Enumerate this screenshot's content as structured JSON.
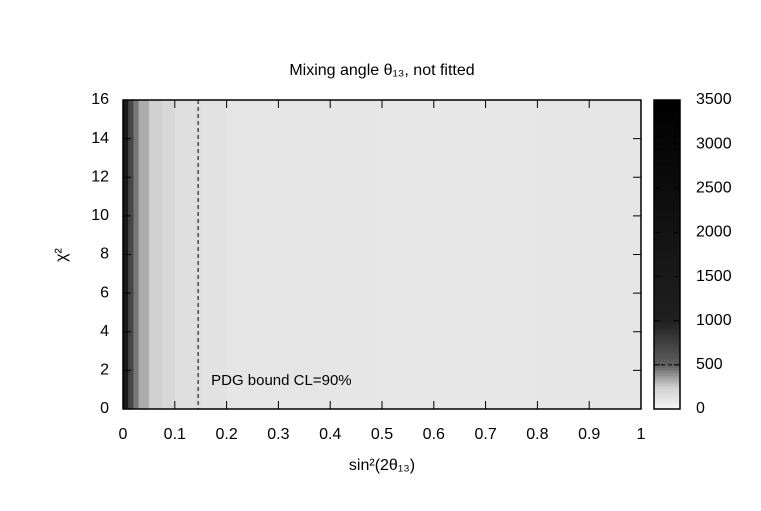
{
  "chart_data": {
    "type": "heatmap",
    "title": "Mixing angle θ₁₃, not fitted",
    "xlabel": "sin²(2θ₁₃)",
    "ylabel": "χ²",
    "xbins": [
      0,
      0.01,
      0.02,
      0.03,
      0.05,
      0.075,
      0.1,
      0.15,
      0.2,
      0.3,
      0.4,
      0.5,
      0.6,
      0.7,
      0.8,
      0.9,
      1
    ],
    "ybins": [
      0,
      16
    ],
    "z": [
      [
        1500,
        700,
        450,
        330,
        250,
        200,
        160,
        130,
        115,
        110,
        105,
        100,
        100,
        100,
        105,
        110
      ]
    ],
    "xlim": [
      0,
      1
    ],
    "ylim": [
      0,
      16
    ],
    "xticks": [
      0,
      0.1,
      0.2,
      0.3,
      0.4,
      0.5,
      0.6,
      0.7,
      0.8,
      0.9,
      1
    ],
    "yticks": [
      0,
      2,
      4,
      6,
      8,
      10,
      12,
      14,
      16
    ],
    "colorbar_lim": [
      0,
      3500
    ],
    "colorbar_ticks": [
      0,
      500,
      1000,
      1500,
      2000,
      2500,
      3000,
      3500
    ],
    "colorscale": [
      [
        0,
        "#f6f6f6"
      ],
      [
        250,
        "#d0d0d0"
      ],
      [
        500,
        "#606060"
      ],
      [
        1000,
        "#202020"
      ],
      [
        3500,
        "#000000"
      ]
    ],
    "colorbar_line": 500,
    "annotation": {
      "x": 0.145,
      "label": "PDG bound CL=90%"
    }
  }
}
